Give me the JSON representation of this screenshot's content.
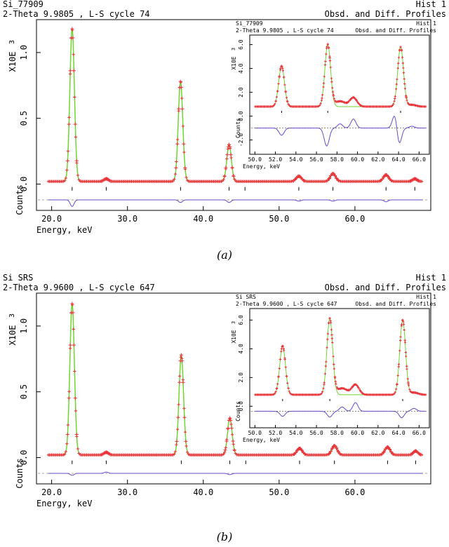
{
  "panels": [
    {
      "caption": "(a)",
      "header": {
        "title": "Si_77909",
        "subtitle": "2-Theta 9.9805 , L-S cycle    74",
        "hist": "Hist   1",
        "profile": "Obsd. and Diff. Profiles"
      },
      "inset_header": {
        "title": "Si_77909",
        "subtitle": "2-Theta 9.9805 , L-S cycle   74",
        "hist": "Hist  1",
        "profile": "Obsd. and Diff. Profiles"
      },
      "chart_data": [
        {
          "type": "line",
          "xlabel": "Energy, keV",
          "ylabel": "X10E",
          "ylabel_exponent": "3",
          "diff_label": "Counts",
          "xlim": [
            18.0,
            70.0
          ],
          "ylim": [
            -0.2,
            1.25
          ],
          "x_ticks": [
            "20.0",
            "30.0",
            "40.0",
            "50.0",
            "60.0"
          ],
          "x_tick_values": [
            20,
            30,
            40,
            50,
            60
          ],
          "y_ticks": [
            "0.0",
            "0.5",
            "1.0"
          ],
          "y_tick_values": [
            0.0,
            0.5,
            1.0
          ],
          "baseline": 0.02,
          "peaks": [
            {
              "pos": 22.7,
              "height": 1.16,
              "width": 0.3
            },
            {
              "pos": 27.2,
              "height": 0.02,
              "width": 0.3
            },
            {
              "pos": 37.0,
              "height": 0.76,
              "width": 0.3
            },
            {
              "pos": 43.4,
              "height": 0.28,
              "width": 0.3
            },
            {
              "pos": 52.6,
              "height": 0.04,
              "width": 0.35
            },
            {
              "pos": 57.1,
              "height": 0.06,
              "width": 0.35
            },
            {
              "pos": 64.1,
              "height": 0.05,
              "width": 0.35
            },
            {
              "pos": 67.9,
              "height": 0.02,
              "width": 0.3
            }
          ],
          "reflection_ticks": [
            22.7,
            27.2,
            37.0,
            43.4,
            45.5,
            52.6,
            57.1,
            64.1,
            67.9
          ],
          "diff_offset": -0.12,
          "diff_features": [
            {
              "pos": 22.7,
              "amp": -0.05
            },
            {
              "pos": 37.0,
              "amp": -0.02
            },
            {
              "pos": 43.4,
              "amp": -0.02
            },
            {
              "pos": 52.6,
              "amp": -0.01
            },
            {
              "pos": 57.1,
              "amp": -0.01
            },
            {
              "pos": 64.1,
              "amp": -0.015
            }
          ],
          "colors": {
            "obs": "#e8343a",
            "calc": "#6fd630",
            "diff": "#6a48c8",
            "ticks": "#000000"
          }
        },
        {
          "type": "line",
          "xlabel": "Energy, keV",
          "ylabel": "X10E",
          "ylabel_exponent": "3",
          "diff_label": "Counts",
          "xlim": [
            49.5,
            67.0
          ],
          "ylim": [
            -3.2,
            6.8
          ],
          "x_ticks": [
            "50.0",
            "52.0",
            "54.0",
            "56.0",
            "58.0",
            "60.0",
            "62.0",
            "64.0",
            "66.0"
          ],
          "x_tick_values": [
            50,
            52,
            54,
            56,
            58,
            60,
            62,
            64,
            66
          ],
          "y_ticks": [
            "-2.0",
            "0.0",
            "2.0",
            "4.0",
            "6.0"
          ],
          "y_tick_values": [
            -2.0,
            0.0,
            2.0,
            4.0,
            6.0
          ],
          "baseline": 0.8,
          "peaks": [
            {
              "pos": 52.6,
              "height": 3.4,
              "width": 0.28
            },
            {
              "pos": 57.1,
              "height": 5.2,
              "width": 0.28
            },
            {
              "pos": 58.3,
              "height": 0.45,
              "width": 0.5
            },
            {
              "pos": 59.6,
              "height": 0.75,
              "width": 0.35
            },
            {
              "pos": 64.2,
              "height": 5.0,
              "width": 0.28
            },
            {
              "pos": 65.3,
              "height": 0.15,
              "width": 0.4
            }
          ],
          "calc_exclude": [
            58.3,
            59.6
          ],
          "reflection_ticks": [
            52.6,
            57.1,
            64.2
          ],
          "diff_offset": -1.0,
          "diff_features": [
            {
              "pos": 52.6,
              "amp": -0.6
            },
            {
              "pos": 57.0,
              "amp": -1.5
            },
            {
              "pos": 58.3,
              "amp": 0.35
            },
            {
              "pos": 59.6,
              "amp": 0.75
            },
            {
              "pos": 64.0,
              "amp": -1.8
            },
            {
              "pos": 63.7,
              "amp": 1.6
            },
            {
              "pos": 65.3,
              "amp": 0.15
            }
          ],
          "colors": {
            "obs": "#e8343a",
            "calc": "#6fd630",
            "diff": "#6a48c8",
            "ticks": "#000000"
          }
        }
      ]
    },
    {
      "caption": "(b)",
      "header": {
        "title": "Si SRS",
        "subtitle": "2-Theta 9.9600 , L-S cycle  647",
        "hist": "Hist   1",
        "profile": "Obsd. and Diff. Profiles"
      },
      "inset_header": {
        "title": "Si SRS",
        "subtitle": "2-Theta 9.9600 , L-S cycle  647",
        "hist": "Hist  1",
        "profile": "Obsd. and Diff. Profiles"
      },
      "chart_data": [
        {
          "type": "line",
          "xlabel": "Energy, keV",
          "ylabel": "X10E",
          "ylabel_exponent": "3",
          "diff_label": "Counts",
          "xlim": [
            18.0,
            70.0
          ],
          "ylim": [
            -0.2,
            1.25
          ],
          "x_ticks": [
            "20.0",
            "30.0",
            "40.0",
            "50.0",
            "60.0"
          ],
          "x_tick_values": [
            20,
            30,
            40,
            50,
            60
          ],
          "y_ticks": [
            "0.0",
            "0.5",
            "1.0"
          ],
          "y_tick_values": [
            0.0,
            0.5,
            1.0
          ],
          "baseline": 0.02,
          "peaks": [
            {
              "pos": 22.7,
              "height": 1.15,
              "width": 0.3
            },
            {
              "pos": 27.2,
              "height": 0.02,
              "width": 0.3
            },
            {
              "pos": 37.1,
              "height": 0.76,
              "width": 0.3
            },
            {
              "pos": 43.5,
              "height": 0.28,
              "width": 0.3
            },
            {
              "pos": 52.7,
              "height": 0.05,
              "width": 0.35
            },
            {
              "pos": 57.3,
              "height": 0.07,
              "width": 0.35
            },
            {
              "pos": 64.3,
              "height": 0.06,
              "width": 0.35
            },
            {
              "pos": 68.0,
              "height": 0.03,
              "width": 0.3
            }
          ],
          "reflection_ticks": [
            22.7,
            27.2,
            37.1,
            43.5,
            45.6,
            52.7,
            57.3,
            64.3,
            68.0
          ],
          "diff_offset": -0.12,
          "diff_features": [
            {
              "pos": 22.7,
              "amp": -0.015
            },
            {
              "pos": 27.2,
              "amp": 0.01
            },
            {
              "pos": 43.5,
              "amp": -0.01
            }
          ],
          "colors": {
            "obs": "#e8343a",
            "calc": "#6fd630",
            "diff": "#6a48c8",
            "ticks": "#000000"
          }
        },
        {
          "type": "line",
          "xlabel": "Energy, keV",
          "ylabel": "X10E",
          "ylabel_exponent": "3",
          "diff_label": "Counts",
          "xlim": [
            49.5,
            67.0
          ],
          "ylim": [
            -1.5,
            6.8
          ],
          "x_ticks": [
            "50.0",
            "52.0",
            "54.0",
            "56.0",
            "58.0",
            "60.0",
            "62.0",
            "64.0",
            "66.0"
          ],
          "x_tick_values": [
            50,
            52,
            54,
            56,
            58,
            60,
            62,
            64,
            66
          ],
          "y_ticks": [
            "0.0",
            "2.0",
            "4.0",
            "6.0"
          ],
          "y_tick_values": [
            0.0,
            2.0,
            4.0,
            6.0
          ],
          "baseline": 0.8,
          "peaks": [
            {
              "pos": 52.7,
              "height": 3.4,
              "width": 0.28
            },
            {
              "pos": 57.3,
              "height": 5.3,
              "width": 0.28
            },
            {
              "pos": 58.5,
              "height": 0.45,
              "width": 0.5
            },
            {
              "pos": 59.8,
              "height": 0.7,
              "width": 0.35
            },
            {
              "pos": 64.4,
              "height": 5.2,
              "width": 0.28
            },
            {
              "pos": 65.5,
              "height": 0.15,
              "width": 0.4
            }
          ],
          "calc_exclude": [
            58.5,
            59.8
          ],
          "reflection_ticks": [
            52.7,
            57.3,
            64.4
          ],
          "diff_offset": -0.35,
          "diff_features": [
            {
              "pos": 52.7,
              "amp": -0.35
            },
            {
              "pos": 57.3,
              "amp": -0.4
            },
            {
              "pos": 58.5,
              "amp": 0.3
            },
            {
              "pos": 59.8,
              "amp": 0.6
            },
            {
              "pos": 64.3,
              "amp": -0.45
            },
            {
              "pos": 65.5,
              "amp": 0.2
            }
          ],
          "colors": {
            "obs": "#e8343a",
            "calc": "#6fd630",
            "diff": "#6a48c8",
            "ticks": "#000000"
          }
        }
      ]
    }
  ]
}
